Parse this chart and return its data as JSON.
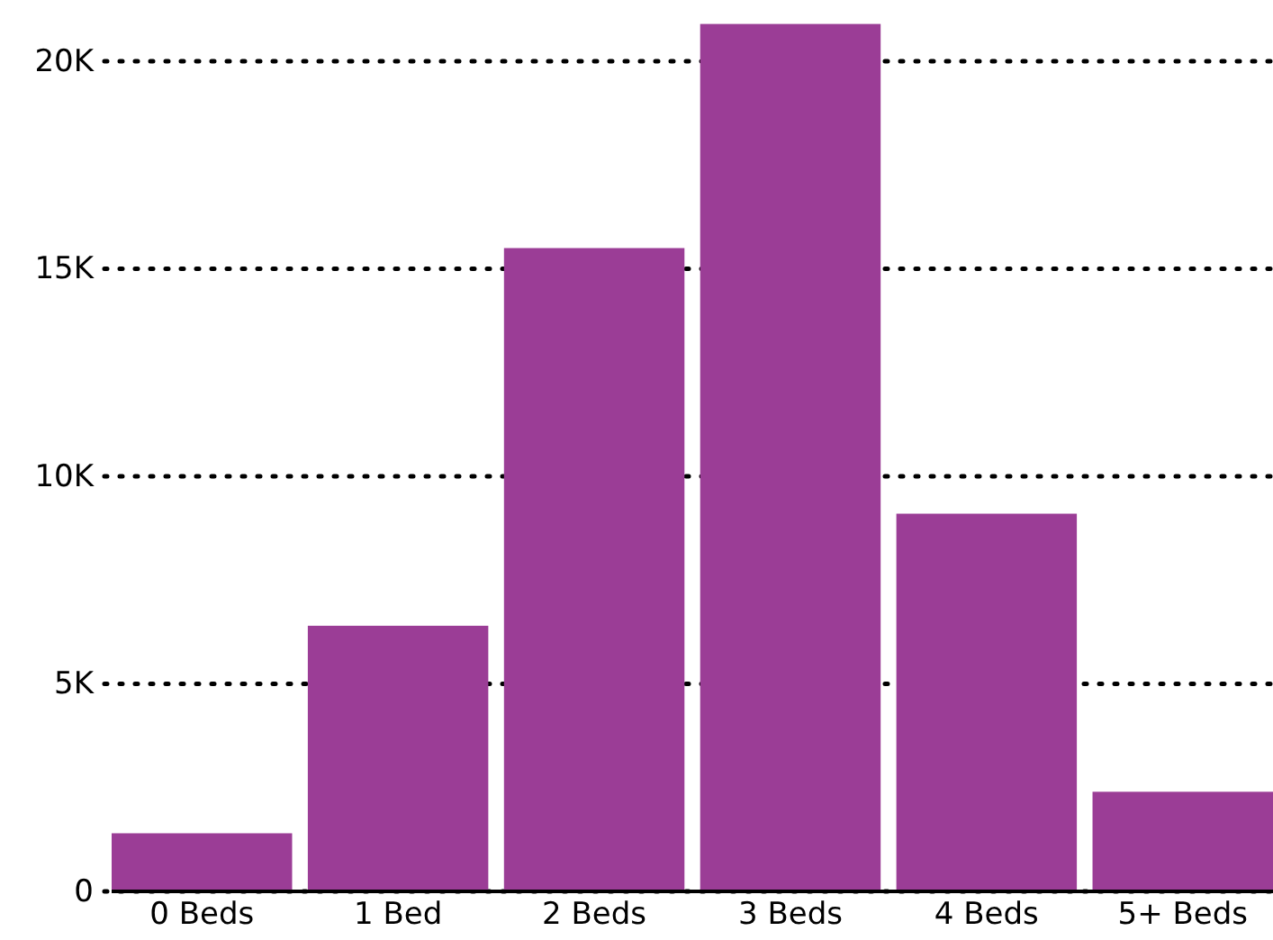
{
  "chart_data": {
    "type": "bar",
    "categories": [
      "0 Beds",
      "1 Bed",
      "2 Beds",
      "3 Beds",
      "4 Beds",
      "5+ Beds"
    ],
    "values": [
      1400,
      6400,
      15500,
      20900,
      9100,
      2400
    ],
    "color": "#9b3d96",
    "ylim": [
      0,
      21000
    ],
    "yticks": [
      {
        "value": 0,
        "label": "0"
      },
      {
        "value": 5000,
        "label": "5K"
      },
      {
        "value": 10000,
        "label": "10K"
      },
      {
        "value": 15000,
        "label": "15K"
      },
      {
        "value": 20000,
        "label": "20K"
      }
    ],
    "grid": "y"
  }
}
